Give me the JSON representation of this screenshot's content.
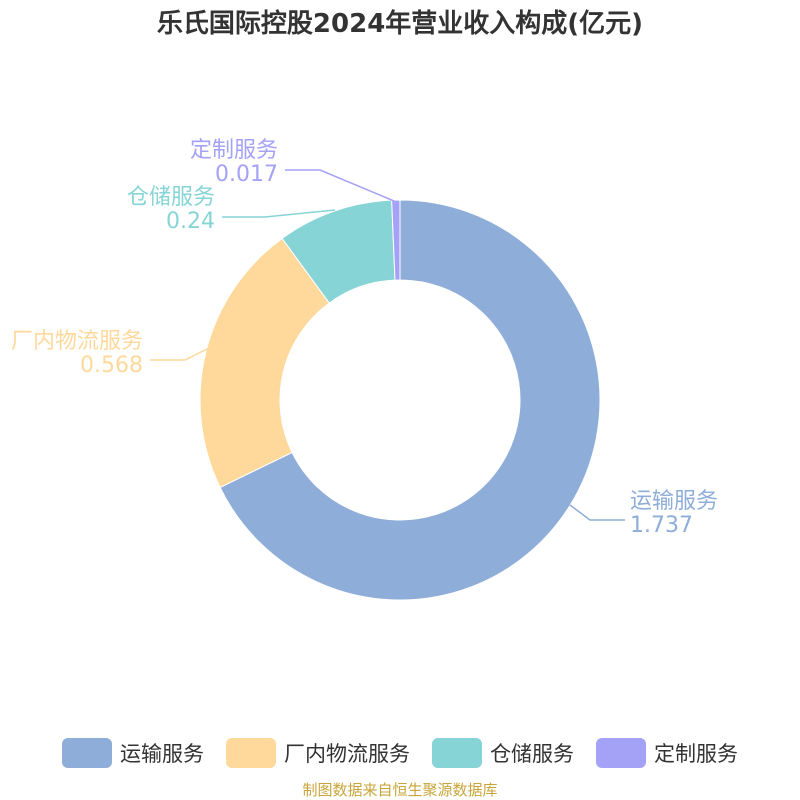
{
  "chart_data": {
    "type": "pie",
    "title": "乐氏国际控股2024年营业收入构成(亿元)",
    "categories": [
      "运输服务",
      "厂内物流服务",
      "仓储服务",
      "定制服务"
    ],
    "values": [
      1.737,
      0.568,
      0.24,
      0.017
    ],
    "value_labels": [
      "1.737",
      "0.568",
      "0.24",
      "0.017"
    ],
    "colors": [
      "#8eadd9",
      "#fed99b",
      "#86d4d6",
      "#a4a2f7"
    ],
    "donut": true,
    "legend_position": "bottom"
  },
  "source": "制图数据来自恒生聚源数据库"
}
